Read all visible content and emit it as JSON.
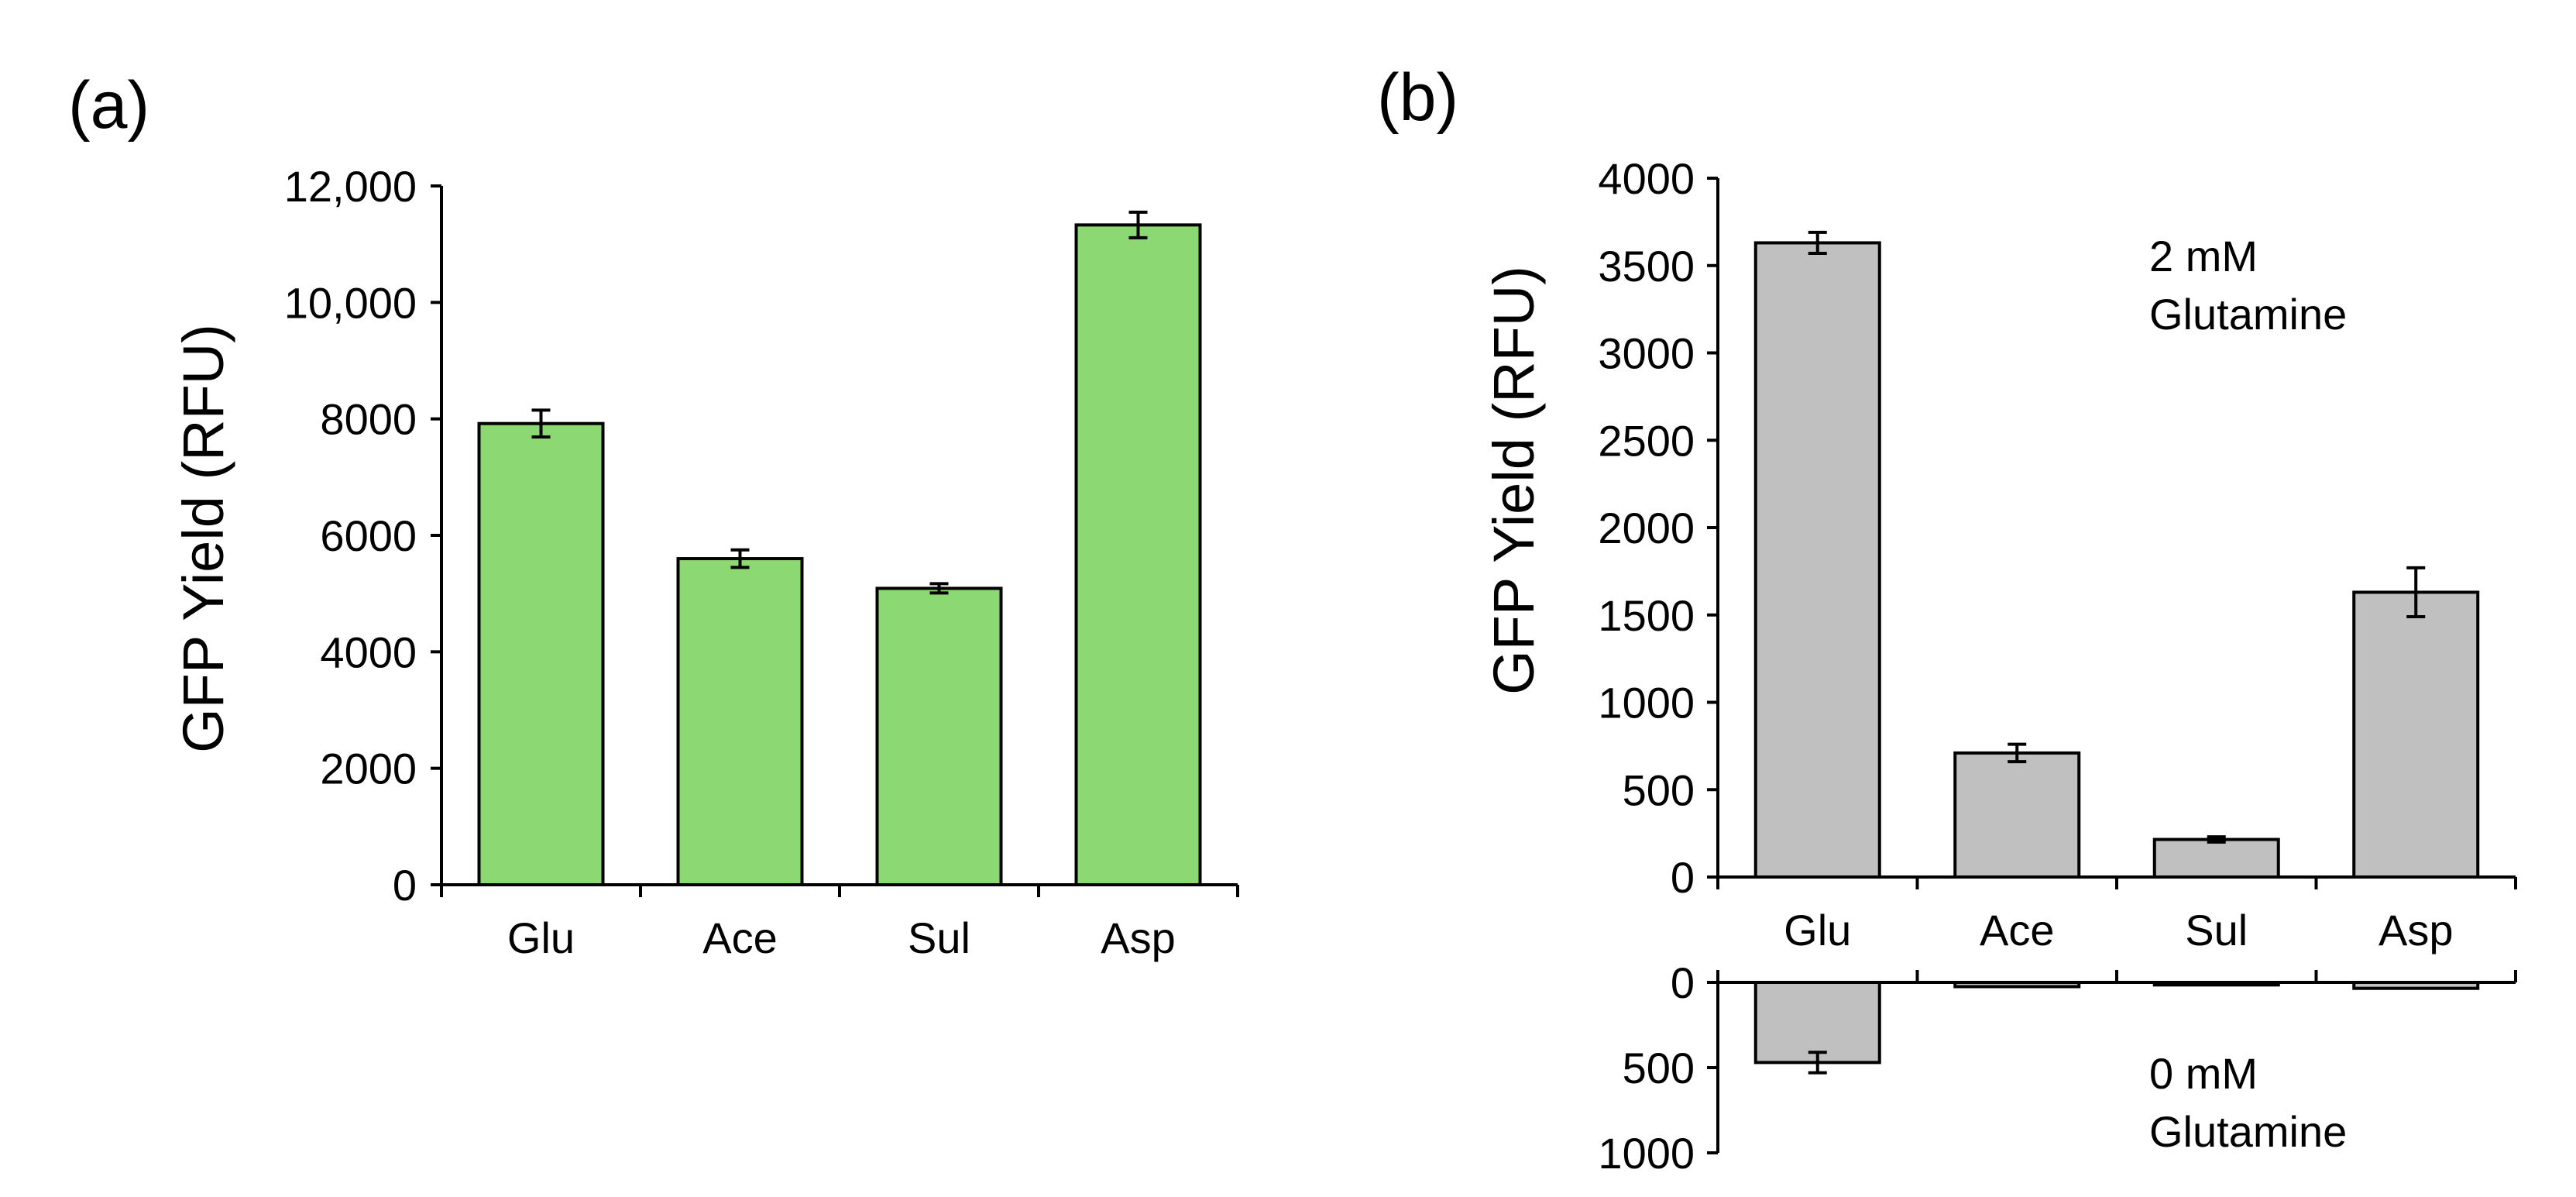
{
  "chart_data": [
    {
      "type": "bar",
      "panel_label": "(a)",
      "ylabel": "GFP Yield (RFU)",
      "xlabel": "",
      "categories": [
        "Glu",
        "Ace",
        "Sul",
        "Asp"
      ],
      "values": [
        7920,
        5600,
        5090,
        11330
      ],
      "errors": [
        230,
        150,
        80,
        220
      ],
      "ylim": [
        0,
        12000
      ],
      "yticks": [
        0,
        2000,
        4000,
        6000,
        8000,
        10000,
        12000
      ],
      "ytick_labels": [
        "0",
        "2000",
        "4000",
        "6000",
        "8000",
        "10,000",
        "12,000"
      ],
      "bar_color": "#8cd973",
      "grid": false
    },
    {
      "type": "bar",
      "panel_label": "(b)",
      "ylabel": "GFP Yield (RFU)",
      "xlabel": "",
      "categories": [
        "Glu",
        "Ace",
        "Sul",
        "Asp"
      ],
      "bar_color": "#c0c0c0",
      "grid": false,
      "series": [
        {
          "name": "2 mM Glutamine",
          "annotation": [
            "2 mM",
            "Glutamine"
          ],
          "values": [
            3630,
            710,
            215,
            1630
          ],
          "errors": [
            60,
            50,
            15,
            140
          ],
          "ylim": [
            0,
            4000
          ],
          "yticks": [
            0,
            500,
            1000,
            1500,
            2000,
            2500,
            3000,
            3500,
            4000
          ],
          "ytick_labels": [
            "0",
            "500",
            "1000",
            "1500",
            "2000",
            "2500",
            "3000",
            "3500",
            "4000"
          ]
        },
        {
          "name": "0 mM Glutamine",
          "annotation": [
            "0 mM",
            "Glutamine"
          ],
          "values": [
            470,
            25,
            15,
            35
          ],
          "errors": [
            60,
            5,
            5,
            10
          ],
          "ylim": [
            0,
            1000
          ],
          "inverted": true,
          "yticks": [
            0,
            500,
            1000
          ],
          "ytick_labels": [
            "0",
            "500",
            "1000"
          ]
        }
      ]
    }
  ]
}
